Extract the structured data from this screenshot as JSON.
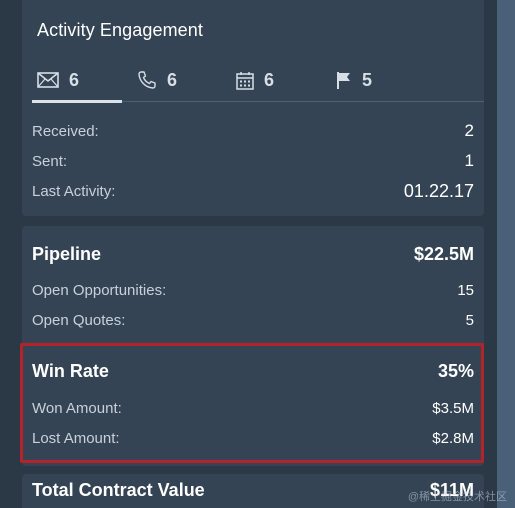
{
  "activity": {
    "title": "Activity Engagement",
    "tabs": [
      {
        "icon": "envelope-icon",
        "count": "6"
      },
      {
        "icon": "phone-icon",
        "count": "6"
      },
      {
        "icon": "calendar-icon",
        "count": "6"
      },
      {
        "icon": "flag-icon",
        "count": "5"
      }
    ],
    "rows": [
      {
        "label": "Received:",
        "value": "2"
      },
      {
        "label": "Sent:",
        "value": "1"
      },
      {
        "label": "Last Activity:",
        "value": "01.22.17"
      }
    ]
  },
  "pipeline": {
    "label": "Pipeline",
    "value": "$22.5M",
    "rows": [
      {
        "label": "Open Opportunities:",
        "value": "15"
      },
      {
        "label": "Open Quotes:",
        "value": "5"
      }
    ]
  },
  "win_rate": {
    "label": "Win Rate",
    "value": "35%",
    "rows": [
      {
        "label": "Won Amount:",
        "value": "$3.5M"
      },
      {
        "label": "Lost Amount:",
        "value": "$2.8M"
      }
    ]
  },
  "total_contract": {
    "label": "Total Contract Value",
    "value": "$11M"
  },
  "watermark": "@稀土掘金技术社区",
  "colors": {
    "background": "#2b3845",
    "panel": "#344455",
    "highlight_border": "#b4232a",
    "text_primary": "#ffffff",
    "text_secondary": "#c8d1da"
  }
}
